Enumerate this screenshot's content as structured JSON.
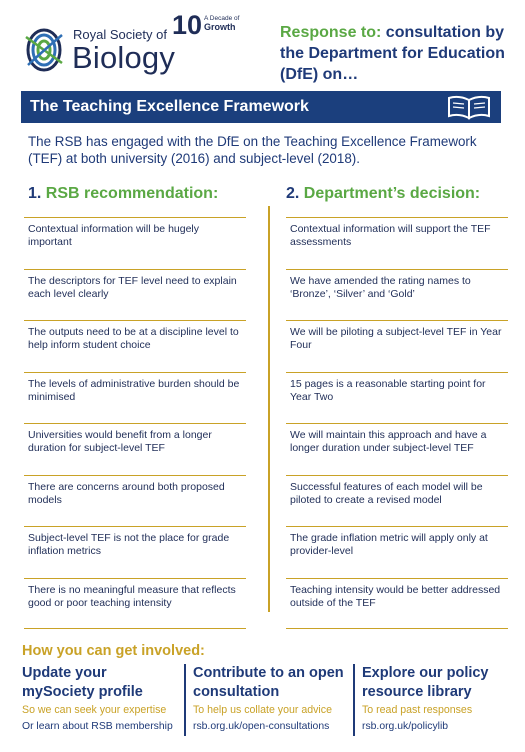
{
  "logo": {
    "small": "Royal Society of",
    "big": "Biology",
    "anniversary_number": "10",
    "anniversary_decade": "A Decade of",
    "anniversary_growth": "Growth"
  },
  "response": {
    "prefix": "Response to:",
    "text": " consultation by the Department for Education (DfE) on…"
  },
  "banner": {
    "title": "The Teaching Excellence Framework"
  },
  "intro": "The RSB has engaged with the DfE on the Teaching Excellence Framework (TEF) at both university (2016) and subject-level (2018).",
  "columns": {
    "left": {
      "num": "1.",
      "title": "RSB recommendation:"
    },
    "right": {
      "num": "2.",
      "title": "Department’s decision:"
    }
  },
  "recommendations": [
    "Contextual information will be hugely important",
    "The descriptors for TEF level need to explain each level clearly",
    "The outputs need to be at a discipline level to help inform student choice",
    "The levels of administrative burden should be minimised",
    "Universities would benefit from a longer duration for subject-level TEF",
    "There are concerns around both proposed models",
    "Subject-level TEF is not the place for grade inflation metrics",
    "There is no meaningful measure that reflects good or poor teaching intensity"
  ],
  "decisions": [
    "Contextual information will support the TEF assessments",
    "We have amended the rating names to ‘Bronze’, ‘Silver’ and ‘Gold’",
    "We will be piloting a subject-level TEF in Year Four",
    "15 pages is a reasonable starting point for Year Two",
    "We will maintain this approach and have a longer duration under subject-level TEF",
    "Successful features of each model will be piloted to create a revised model",
    "The grade inflation metric will apply only at provider-level",
    "Teaching intensity would be better addressed outside of the TEF"
  ],
  "involved": {
    "title": "How you can get involved:",
    "boxes": [
      {
        "head": "Update your mySociety profile",
        "sub": "So we can seek your expertise",
        "link": "Or learn about RSB membership"
      },
      {
        "head": "Contribute to an open consultation",
        "sub": "To help us collate your advice",
        "link": "rsb.org.uk/open-consultations"
      },
      {
        "head": "Explore our policy resource library",
        "sub": "To read past responses",
        "link": "rsb.org.uk/policylib"
      }
    ]
  },
  "colors": {
    "navy": "#1b3f7d",
    "green": "#5aa844",
    "gold": "#c9a227"
  },
  "icons": {
    "banner": "open-book-icon",
    "logo": "rsb-logo-mark"
  }
}
